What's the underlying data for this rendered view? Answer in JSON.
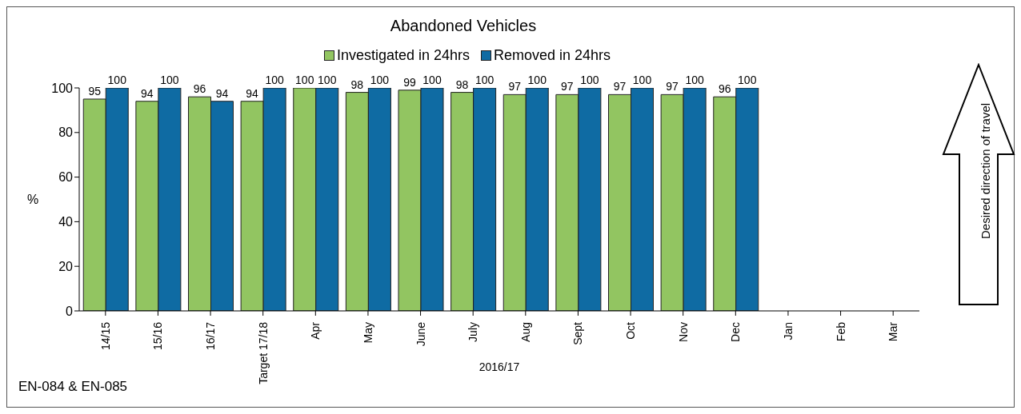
{
  "chart_data": {
    "type": "bar",
    "title": "Abandoned Vehicles",
    "xlabel": "2016/17",
    "ylabel": "%",
    "categories": [
      "14/15",
      "15/16",
      "16/17",
      "Target 17/18",
      "Apr",
      "May",
      "June",
      "July",
      "Aug",
      "Sept",
      "Oct",
      "Nov",
      "Dec",
      "Jan",
      "Feb",
      "Mar"
    ],
    "series": [
      {
        "name": "Investigated in 24hrs",
        "color": "#92c561",
        "values": [
          95,
          94,
          96,
          94,
          100,
          98,
          99,
          98,
          97,
          97,
          97,
          97,
          96,
          null,
          null,
          null
        ]
      },
      {
        "name": "Removed in 24hrs",
        "color": "#0f6ba3",
        "values": [
          100,
          100,
          94,
          100,
          100,
          100,
          100,
          100,
          100,
          100,
          100,
          100,
          100,
          null,
          null,
          null
        ]
      }
    ],
    "ylim": [
      0,
      100
    ],
    "yticks": [
      0,
      20,
      40,
      60,
      80,
      100
    ],
    "grid": false,
    "legend": "top",
    "data_labels": true,
    "annotations": [
      "EN-084 & EN-085",
      "Desired direction of travel"
    ]
  }
}
